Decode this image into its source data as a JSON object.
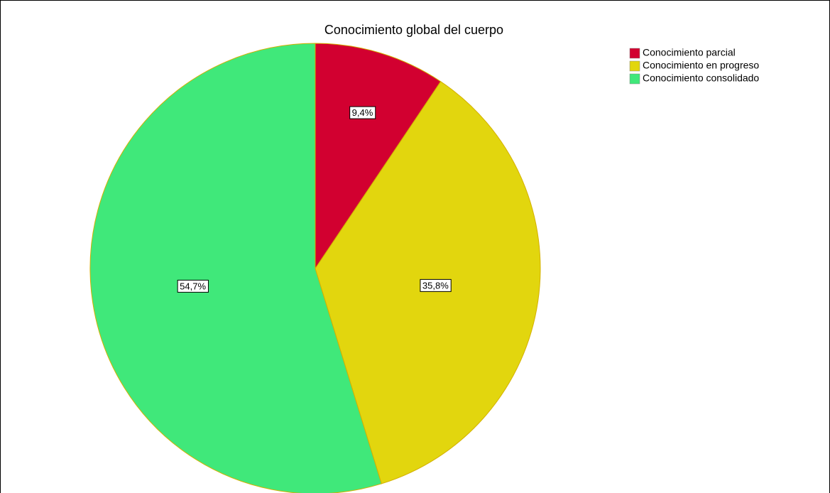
{
  "chart_data": {
    "type": "pie",
    "title": "Conocimiento global del cuerpo",
    "categories": [
      "Conocimiento parcial",
      "Conocimiento en progreso",
      "Conocimiento consolidado"
    ],
    "values": [
      9.4,
      35.8,
      54.7
    ],
    "value_labels": [
      "9,4%",
      "35,8%",
      "54,7%"
    ],
    "colors": [
      "#d20030",
      "#e2d60e",
      "#40e87a"
    ],
    "legend": "top-right"
  }
}
